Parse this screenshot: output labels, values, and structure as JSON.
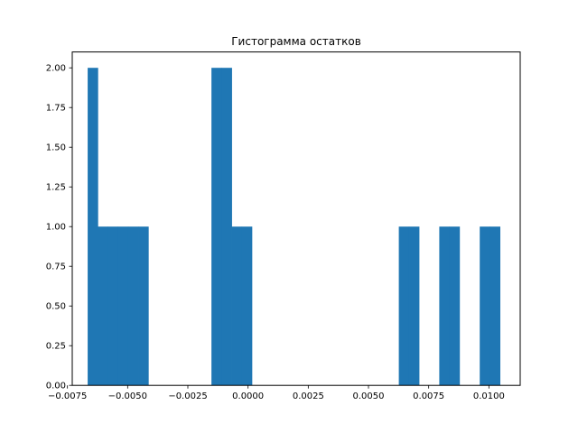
{
  "chart_data": {
    "type": "bar",
    "title": "Гистограмма остатков",
    "xlabel": "",
    "ylabel": "",
    "xlim": [
      -0.0073,
      0.0113
    ],
    "ylim": [
      0,
      2.1
    ],
    "grid": false,
    "bar_color": "#1f77b4",
    "bins": [
      {
        "x0": -0.00666,
        "x1": -0.00624,
        "count": 2
      },
      {
        "x0": -0.00624,
        "x1": -0.00582,
        "count": 1
      },
      {
        "x0": -0.00582,
        "x1": -0.0054,
        "count": 1
      },
      {
        "x0": -0.0054,
        "x1": -0.00498,
        "count": 1
      },
      {
        "x0": -0.00498,
        "x1": -0.00456,
        "count": 1
      },
      {
        "x0": -0.00456,
        "x1": -0.00414,
        "count": 1
      },
      {
        "x0": -0.00152,
        "x1": -0.0011,
        "count": 2
      },
      {
        "x0": -0.0011,
        "x1": -0.00068,
        "count": 2
      },
      {
        "x0": -0.00068,
        "x1": -0.00026,
        "count": 1
      },
      {
        "x0": -0.00026,
        "x1": 0.00016,
        "count": 1
      },
      {
        "x0": 0.00626,
        "x1": 0.00668,
        "count": 1
      },
      {
        "x0": 0.00668,
        "x1": 0.0071,
        "count": 1
      },
      {
        "x0": 0.00794,
        "x1": 0.00836,
        "count": 1
      },
      {
        "x0": 0.00836,
        "x1": 0.00878,
        "count": 1
      },
      {
        "x0": 0.00962,
        "x1": 0.01004,
        "count": 1
      },
      {
        "x0": 0.01004,
        "x1": 0.01046,
        "count": 1
      }
    ],
    "x_ticks": [
      {
        "value": -0.0075,
        "label": "−0.0075"
      },
      {
        "value": -0.005,
        "label": "−0.0050"
      },
      {
        "value": -0.0025,
        "label": "−0.0025"
      },
      {
        "value": 0.0,
        "label": "0.0000"
      },
      {
        "value": 0.0025,
        "label": "0.0025"
      },
      {
        "value": 0.005,
        "label": "0.0050"
      },
      {
        "value": 0.0075,
        "label": "0.0075"
      },
      {
        "value": 0.01,
        "label": "0.0100"
      }
    ],
    "y_ticks": [
      {
        "value": 0.0,
        "label": "0.00"
      },
      {
        "value": 0.25,
        "label": "0.25"
      },
      {
        "value": 0.5,
        "label": "0.50"
      },
      {
        "value": 0.75,
        "label": "0.75"
      },
      {
        "value": 1.0,
        "label": "1.00"
      },
      {
        "value": 1.25,
        "label": "1.25"
      },
      {
        "value": 1.5,
        "label": "1.50"
      },
      {
        "value": 1.75,
        "label": "1.75"
      },
      {
        "value": 2.0,
        "label": "2.00"
      }
    ]
  }
}
